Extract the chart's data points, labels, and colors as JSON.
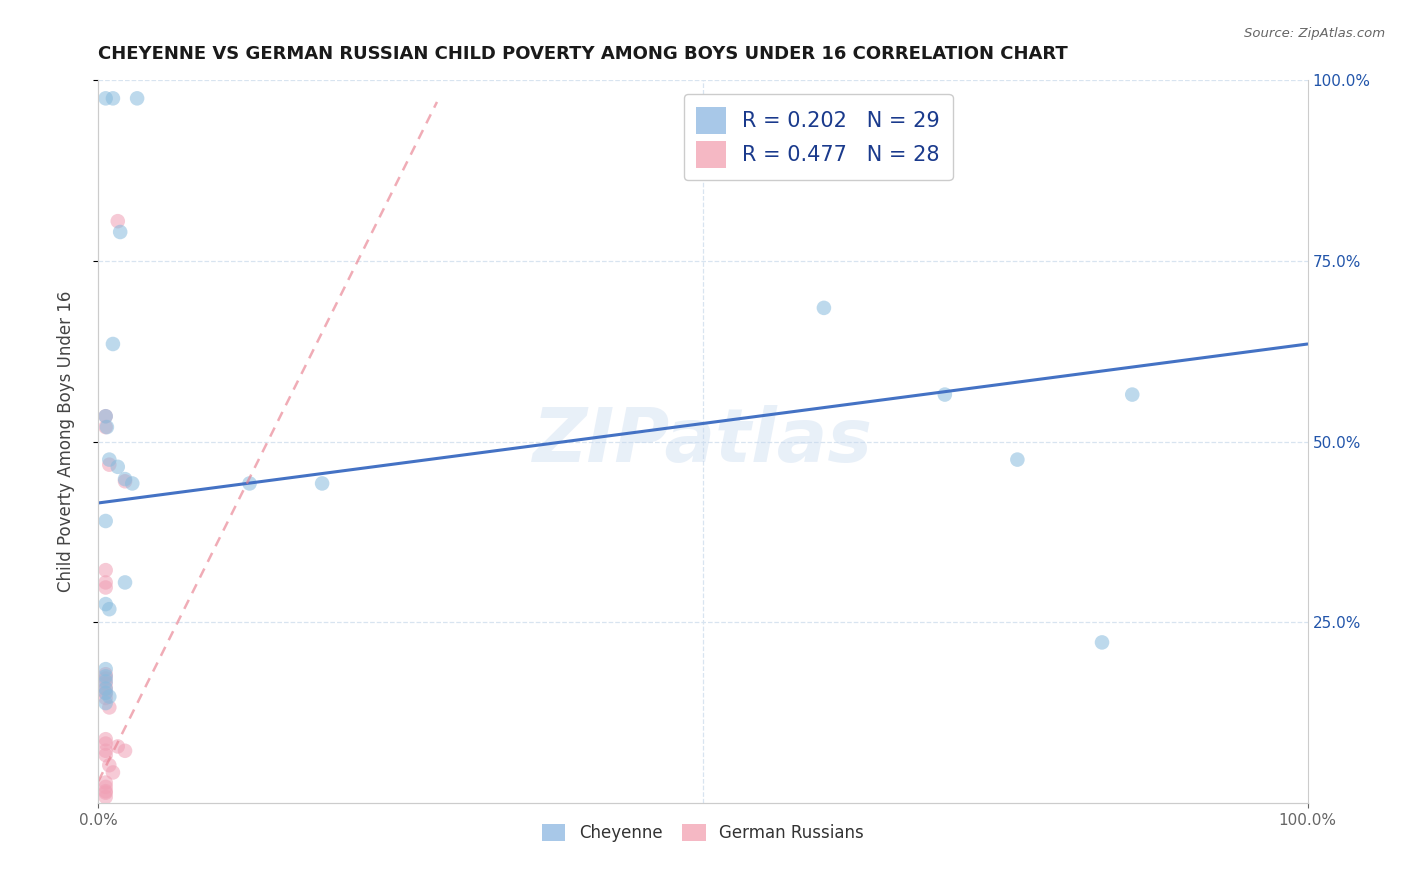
{
  "title": "CHEYENNE VS GERMAN RUSSIAN CHILD POVERTY AMONG BOYS UNDER 16 CORRELATION CHART",
  "source": "Source: ZipAtlas.com",
  "ylabel": "Child Poverty Among Boys Under 16",
  "xlim": [
    0,
    1
  ],
  "ylim": [
    0,
    1
  ],
  "watermark": "ZIPatlas",
  "legend_entries": [
    {
      "label": "R = 0.202   N = 29",
      "color": "#a8c8e8"
    },
    {
      "label": "R = 0.477   N = 28",
      "color": "#f5b8c4"
    }
  ],
  "cheyenne_color": "#88bbdd",
  "german_color": "#f0a0b5",
  "cheyenne_line_color": "#4472c4",
  "german_line_color": "#e88090",
  "background_color": "#ffffff",
  "grid_color": "#d8e4f0",
  "cheyenne_points": [
    [
      0.006,
      0.975
    ],
    [
      0.012,
      0.975
    ],
    [
      0.032,
      0.975
    ],
    [
      0.018,
      0.79
    ],
    [
      0.012,
      0.635
    ],
    [
      0.006,
      0.535
    ],
    [
      0.007,
      0.52
    ],
    [
      0.009,
      0.475
    ],
    [
      0.016,
      0.465
    ],
    [
      0.022,
      0.448
    ],
    [
      0.028,
      0.442
    ],
    [
      0.125,
      0.442
    ],
    [
      0.185,
      0.442
    ],
    [
      0.006,
      0.39
    ],
    [
      0.6,
      0.685
    ],
    [
      0.7,
      0.565
    ],
    [
      0.76,
      0.475
    ],
    [
      0.855,
      0.565
    ],
    [
      0.006,
      0.275
    ],
    [
      0.009,
      0.268
    ],
    [
      0.022,
      0.305
    ],
    [
      0.006,
      0.185
    ],
    [
      0.006,
      0.175
    ],
    [
      0.006,
      0.168
    ],
    [
      0.006,
      0.158
    ],
    [
      0.006,
      0.152
    ],
    [
      0.009,
      0.147
    ],
    [
      0.006,
      0.138
    ],
    [
      0.83,
      0.222
    ]
  ],
  "german_points": [
    [
      0.006,
      0.535
    ],
    [
      0.006,
      0.52
    ],
    [
      0.009,
      0.468
    ],
    [
      0.016,
      0.805
    ],
    [
      0.022,
      0.445
    ],
    [
      0.006,
      0.305
    ],
    [
      0.006,
      0.298
    ],
    [
      0.006,
      0.178
    ],
    [
      0.006,
      0.172
    ],
    [
      0.006,
      0.165
    ],
    [
      0.006,
      0.158
    ],
    [
      0.006,
      0.152
    ],
    [
      0.006,
      0.145
    ],
    [
      0.009,
      0.132
    ],
    [
      0.009,
      0.052
    ],
    [
      0.012,
      0.042
    ],
    [
      0.006,
      0.088
    ],
    [
      0.006,
      0.082
    ],
    [
      0.006,
      0.072
    ],
    [
      0.006,
      0.066
    ],
    [
      0.016,
      0.078
    ],
    [
      0.022,
      0.072
    ],
    [
      0.006,
      0.008
    ],
    [
      0.006,
      0.014
    ],
    [
      0.006,
      0.028
    ],
    [
      0.006,
      0.022
    ],
    [
      0.006,
      0.016
    ],
    [
      0.006,
      0.322
    ]
  ],
  "cheyenne_trend_x": [
    0.0,
    1.0
  ],
  "cheyenne_trend_y": [
    0.415,
    0.635
  ],
  "german_trend_x": [
    0.0,
    0.28
  ],
  "german_trend_y": [
    0.03,
    0.97
  ],
  "marker_size": 110,
  "marker_alpha": 0.55,
  "legend_label_cheyenne": "Cheyenne",
  "legend_label_german": "German Russians",
  "right_tick_color": "#2255aa",
  "right_yticks": [
    0.25,
    0.5,
    0.75,
    1.0
  ],
  "right_ytick_labels": [
    "25.0%",
    "50.0%",
    "75.0%",
    "100.0%"
  ]
}
